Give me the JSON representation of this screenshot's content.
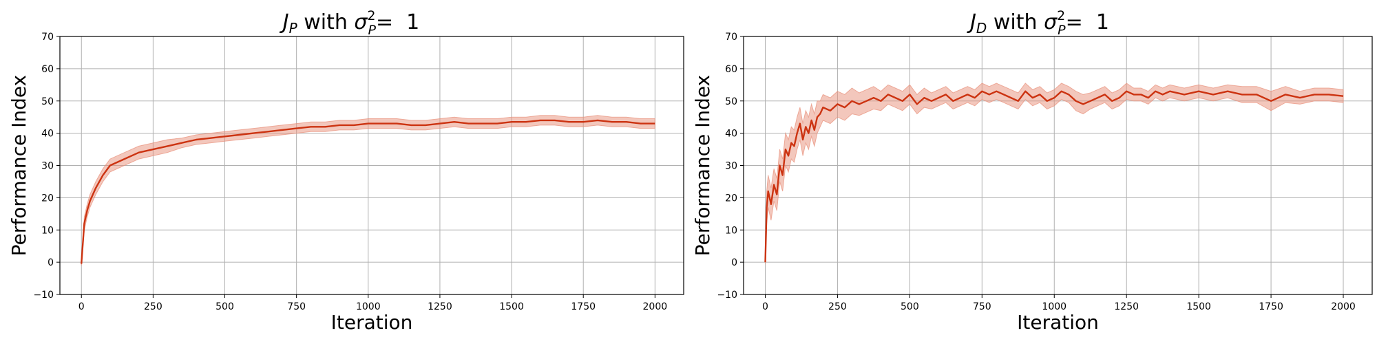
{
  "colors": {
    "line": "#cc3311",
    "band": "#e8907a",
    "grid": "#b0b0b0"
  },
  "chart_data": [
    {
      "type": "line",
      "title": {
        "main": "J",
        "main_sub": "P",
        "with": " with ",
        "sigma": "σ",
        "sigma_sup": "2",
        "sigma_sub": "P",
        "equals": "=  1"
      },
      "xlabel": "Iteration",
      "ylabel": "Performance Index",
      "xlim": [
        -75,
        2100
      ],
      "ylim": [
        -10,
        70
      ],
      "xticks": [
        0,
        250,
        500,
        750,
        1000,
        1250,
        1500,
        1750,
        2000
      ],
      "yticks": [
        -10,
        0,
        10,
        20,
        30,
        40,
        50,
        60,
        70
      ],
      "grid": true,
      "series": [
        {
          "x": [
            0,
            10,
            20,
            30,
            50,
            75,
            100,
            150,
            200,
            250,
            300,
            350,
            400,
            450,
            500,
            550,
            600,
            650,
            700,
            750,
            800,
            850,
            900,
            950,
            1000,
            1050,
            1100,
            1150,
            1200,
            1250,
            1300,
            1350,
            1400,
            1450,
            1500,
            1550,
            1600,
            1650,
            1700,
            1750,
            1800,
            1850,
            1900,
            1950,
            2000
          ],
          "y": [
            -0.5,
            12,
            16,
            19,
            23,
            27,
            30,
            32,
            34,
            35,
            36,
            37,
            38,
            38.5,
            39,
            39.5,
            40,
            40.5,
            41,
            41.5,
            42,
            42,
            42.5,
            42.5,
            43,
            43,
            43,
            42.5,
            42.5,
            43,
            43.5,
            43,
            43,
            43,
            43.5,
            43.5,
            44,
            44,
            43.5,
            43.5,
            44,
            43.5,
            43.5,
            43,
            43
          ],
          "lower": [
            -1,
            10,
            14,
            17,
            21,
            25,
            28,
            30,
            32,
            33,
            34,
            35.5,
            36.5,
            37,
            37.5,
            38,
            38.5,
            39,
            39.5,
            40,
            40.5,
            40.5,
            41,
            41,
            41.5,
            41.5,
            41.5,
            41,
            41,
            41.5,
            42,
            41.5,
            41.5,
            41.5,
            42,
            42,
            42.5,
            42.5,
            42,
            42,
            42.5,
            42,
            42,
            41.5,
            41.5
          ],
          "upper": [
            0,
            14,
            18,
            21,
            25,
            29,
            32,
            34,
            36,
            37,
            38,
            38.5,
            39.5,
            40,
            40.5,
            41,
            41.5,
            42,
            42.5,
            43,
            43.5,
            43.5,
            44,
            44,
            44.5,
            44.5,
            44.5,
            44,
            44,
            44.5,
            45,
            44.5,
            44.5,
            44.5,
            45,
            45,
            45.5,
            45.5,
            45,
            45,
            45.5,
            45,
            45,
            44.5,
            44.5
          ]
        }
      ]
    },
    {
      "type": "line",
      "title": {
        "main": "J",
        "main_sub": "D",
        "with": " with ",
        "sigma": "σ",
        "sigma_sup": "2",
        "sigma_sub": "P",
        "equals": "=  1"
      },
      "xlabel": "Iteration",
      "ylabel": "Performance Index",
      "xlim": [
        -75,
        2100
      ],
      "ylim": [
        -10,
        70
      ],
      "xticks": [
        0,
        250,
        500,
        750,
        1000,
        1250,
        1500,
        1750,
        2000
      ],
      "yticks": [
        -10,
        0,
        10,
        20,
        30,
        40,
        50,
        60,
        70
      ],
      "grid": true,
      "series": [
        {
          "x": [
            0,
            5,
            10,
            20,
            30,
            40,
            50,
            60,
            70,
            80,
            90,
            100,
            110,
            120,
            130,
            140,
            150,
            160,
            170,
            180,
            190,
            200,
            225,
            250,
            275,
            300,
            325,
            350,
            375,
            400,
            425,
            450,
            475,
            500,
            525,
            550,
            575,
            600,
            625,
            650,
            675,
            700,
            725,
            750,
            775,
            800,
            825,
            850,
            875,
            900,
            925,
            950,
            975,
            1000,
            1025,
            1050,
            1075,
            1100,
            1125,
            1150,
            1175,
            1200,
            1225,
            1250,
            1275,
            1300,
            1325,
            1350,
            1375,
            1400,
            1450,
            1500,
            1550,
            1600,
            1650,
            1700,
            1750,
            1800,
            1850,
            1900,
            1950,
            2000
          ],
          "y": [
            0,
            17,
            22,
            18,
            24,
            21,
            30,
            27,
            35,
            33,
            37,
            36,
            40,
            43,
            38,
            42,
            40,
            44,
            41,
            45,
            46,
            48,
            47,
            49,
            48,
            50,
            49,
            50,
            51,
            50,
            52,
            51,
            50,
            52,
            49,
            51,
            50,
            51,
            52,
            50,
            51,
            52,
            51,
            53,
            52,
            53,
            52,
            51,
            50,
            53,
            51,
            52,
            50,
            51,
            53,
            52,
            50,
            49,
            50,
            51,
            52,
            50,
            51,
            53,
            52,
            52,
            51,
            53,
            52,
            53,
            52,
            53,
            52,
            53,
            52,
            52,
            50,
            52,
            51,
            52,
            52,
            51.5
          ],
          "lower": [
            -0.5,
            12,
            17,
            13,
            19,
            16,
            25,
            22,
            30,
            28,
            32,
            31,
            35,
            38,
            33,
            37,
            35,
            39,
            36,
            40,
            42,
            44,
            43,
            45,
            44,
            46,
            45.5,
            46.5,
            47.5,
            47,
            49,
            48,
            47,
            49,
            46,
            48,
            47.5,
            48.5,
            49.5,
            47.5,
            48.5,
            49.5,
            48.5,
            50.5,
            49.5,
            50.5,
            49.5,
            48.5,
            47.5,
            50.5,
            48.5,
            49.5,
            47.5,
            48.5,
            50.5,
            49.5,
            47,
            46,
            47.5,
            48.5,
            49.5,
            47.5,
            48.5,
            50.5,
            50,
            50,
            49,
            51,
            50,
            51,
            50,
            51,
            50,
            51,
            49.5,
            49.5,
            47,
            49.5,
            49,
            50,
            50,
            49.5
          ],
          "upper": [
            0.5,
            22,
            27,
            23,
            29,
            26,
            35,
            32,
            40,
            38,
            42,
            41,
            45,
            48,
            43,
            47,
            45,
            49,
            46,
            50,
            50,
            52,
            51,
            53,
            52,
            54,
            52.5,
            53.5,
            54.5,
            53,
            55,
            54,
            53,
            55,
            52,
            54,
            52.5,
            53.5,
            54.5,
            52.5,
            53.5,
            54.5,
            53.5,
            55.5,
            54.5,
            55.5,
            54.5,
            53.5,
            52.5,
            55.5,
            53.5,
            54.5,
            52.5,
            53.5,
            55.5,
            54.5,
            53,
            52,
            52.5,
            53.5,
            54.5,
            52.5,
            53.5,
            55.5,
            54,
            54,
            53,
            55,
            54,
            55,
            54,
            55,
            54,
            55,
            54.5,
            54.5,
            53,
            54.5,
            53,
            54,
            54,
            53.5
          ]
        }
      ]
    }
  ]
}
